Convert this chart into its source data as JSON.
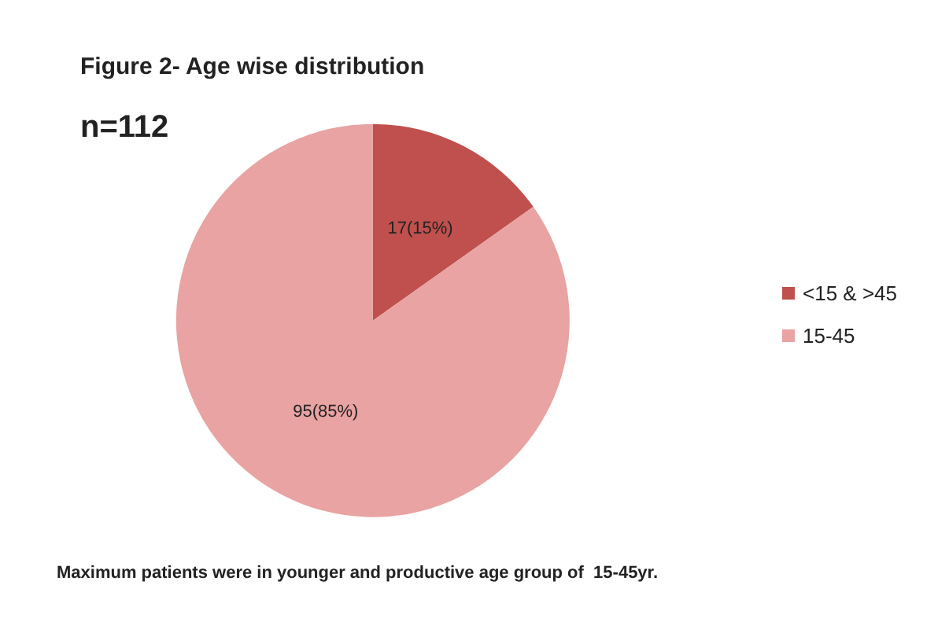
{
  "chart_data": {
    "type": "pie",
    "title": "Figure 2- Age wise distribution",
    "subtitle": "n=112",
    "categories": [
      "<15 & >45",
      "15-45"
    ],
    "values": [
      17,
      95
    ],
    "colors": [
      "#c0504d",
      "#e8a3a2"
    ],
    "value_labels": [
      "17(15%)",
      "95(85%)"
    ],
    "legend": "right",
    "annotations": [
      "Maximum patients were in younger and productive age group of  15-45yr."
    ]
  }
}
